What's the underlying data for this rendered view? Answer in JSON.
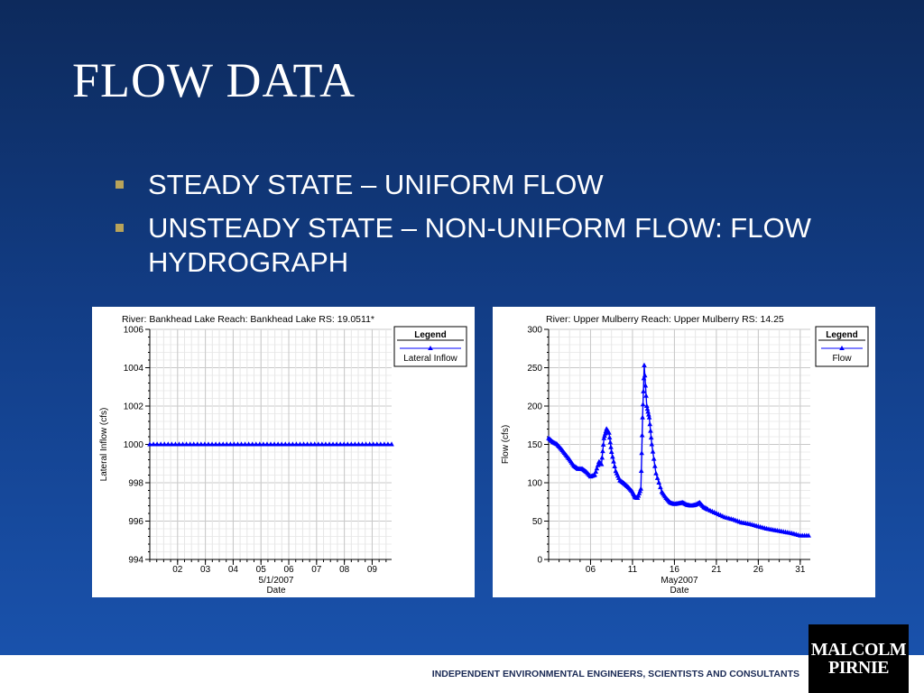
{
  "slide": {
    "title": "FLOW DATA",
    "bullets": [
      "STEADY STATE – UNIFORM FLOW",
      "UNSTEADY STATE – NON-UNIFORM FLOW: FLOW HYDROGRAPH"
    ],
    "footer": "INDEPENDENT ENVIRONMENTAL ENGINEERS, SCIENTISTS AND CONSULTANTS",
    "logo_lines": [
      "MALCOLM",
      "PIRNIE"
    ]
  },
  "chart_data": [
    {
      "type": "line",
      "title": "River: Bankhead Lake  Reach: Bankhead Lake  RS: 19.0511*",
      "xlabel": "Date",
      "xsublabel": "5/1/2007",
      "ylabel": "Lateral Inflow  (cfs)",
      "ylim": [
        994,
        1006
      ],
      "yticks": [
        994,
        996,
        998,
        1000,
        1002,
        1004,
        1006
      ],
      "xlim": [
        1,
        9.7
      ],
      "xticks": [
        2,
        3,
        4,
        5,
        6,
        7,
        8,
        9
      ],
      "xticklabels": [
        "02",
        "03",
        "04",
        "05",
        "06",
        "07",
        "08",
        "09"
      ],
      "grid": true,
      "legend": {
        "title": "Legend",
        "position": "top-right"
      },
      "series": [
        {
          "name": "Lateral Inflow",
          "color": "#0000ff",
          "marker": "triangle",
          "x": [
            1,
            9.7
          ],
          "y": [
            1000,
            1000
          ],
          "marker_count": 67
        }
      ]
    },
    {
      "type": "line",
      "title": "River: Upper Mulberry  Reach: Upper Mulberry  RS: 14.25",
      "xlabel": "Date",
      "xsublabel": "May2007",
      "ylabel": "Flow  (cfs)",
      "ylim": [
        0,
        300
      ],
      "yticks": [
        0,
        50,
        100,
        150,
        200,
        250,
        300
      ],
      "xlim": [
        1,
        32.2
      ],
      "xticks": [
        6,
        11,
        16,
        21,
        26,
        31
      ],
      "xticklabels": [
        "06",
        "11",
        "16",
        "21",
        "26",
        "31"
      ],
      "grid": true,
      "legend": {
        "title": "Legend",
        "position": "top-right"
      },
      "series": [
        {
          "name": "Flow",
          "color": "#0000ff",
          "marker": "triangle",
          "x": [
            1,
            1.5,
            2,
            2.5,
            3,
            3.5,
            4,
            4.5,
            5,
            5.5,
            6,
            6.5,
            7,
            7.3,
            7.6,
            7.9,
            8.2,
            8.5,
            9,
            9.5,
            10,
            10.5,
            11,
            11.3,
            11.6,
            12,
            12.2,
            12.4,
            12.7,
            13,
            13.3,
            13.8,
            14.5,
            15,
            15.5,
            16,
            16.5,
            17,
            17.5,
            18,
            18.5,
            19,
            19.5,
            20,
            21,
            22,
            23,
            24,
            25,
            26,
            27,
            28,
            29,
            30,
            31,
            32
          ],
          "y": [
            158,
            153,
            150,
            144,
            137,
            130,
            122,
            118,
            118,
            114,
            108,
            110,
            127,
            124,
            158,
            170,
            165,
            140,
            115,
            103,
            99,
            94,
            88,
            81,
            80,
            92,
            185,
            253,
            200,
            185,
            150,
            112,
            88,
            80,
            74,
            72,
            73,
            74,
            71,
            70,
            71,
            74,
            68,
            65,
            60,
            55,
            52,
            48,
            46,
            43,
            40,
            38,
            36,
            34,
            31,
            31
          ]
        }
      ]
    }
  ]
}
